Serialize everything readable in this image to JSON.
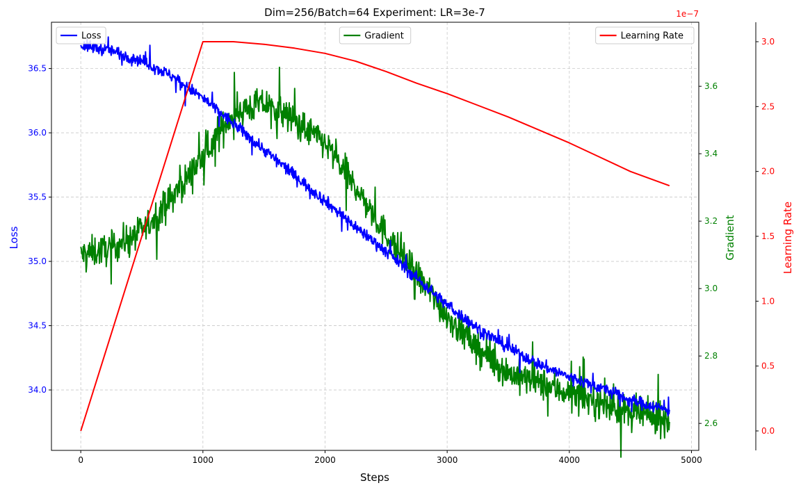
{
  "chart_data": {
    "type": "line",
    "title": "Dim=256/Batch=64 Experiment: LR=3e-7",
    "xlabel": "Steps",
    "xlim": [
      -240,
      5060
    ],
    "xticks": [
      0,
      1000,
      2000,
      3000,
      4000,
      5000
    ],
    "grid": true,
    "axes": {
      "loss": {
        "label": "Loss",
        "color": "#0000ff",
        "ylim": [
          33.53,
          36.86
        ],
        "ticks": [
          "34.0",
          "34.5",
          "35.0",
          "35.5",
          "36.0",
          "36.5"
        ]
      },
      "gradient": {
        "label": "Gradient",
        "color": "#008000",
        "ylim": [
          2.52,
          3.79
        ],
        "ticks": [
          "2.6",
          "2.8",
          "3.0",
          "3.2",
          "3.4",
          "3.6"
        ]
      },
      "learning_rate": {
        "label": "Learning Rate",
        "color": "#ff0000",
        "ylim": [
          -0.15,
          3.15
        ],
        "ticks": [
          "0.0",
          "0.5",
          "1.0",
          "1.5",
          "2.0",
          "2.5",
          "3.0"
        ],
        "offset_label": "1e−7"
      }
    },
    "series": [
      {
        "name": "Loss",
        "axis": "loss",
        "color": "#0000ff",
        "x": [
          0,
          250,
          500,
          750,
          1000,
          1250,
          1500,
          1750,
          2000,
          2250,
          2500,
          2750,
          3000,
          3250,
          3500,
          3750,
          4000,
          4250,
          4500,
          4820
        ],
        "y": [
          36.68,
          36.64,
          36.56,
          36.44,
          36.27,
          36.07,
          35.87,
          35.67,
          35.47,
          35.27,
          35.08,
          34.87,
          34.66,
          34.48,
          34.33,
          34.2,
          34.1,
          34.02,
          33.92,
          33.84
        ],
        "noise": 0.05
      },
      {
        "name": "Gradient",
        "axis": "gradient",
        "color": "#008000",
        "x": [
          0,
          250,
          500,
          750,
          1000,
          1250,
          1500,
          1750,
          2000,
          2250,
          2500,
          2750,
          3000,
          3250,
          3500,
          3750,
          4000,
          4250,
          4500,
          4820
        ],
        "y": [
          3.1,
          3.12,
          3.17,
          3.27,
          3.39,
          3.52,
          3.55,
          3.5,
          3.43,
          3.3,
          3.16,
          3.04,
          2.92,
          2.82,
          2.75,
          2.72,
          2.69,
          2.66,
          2.63,
          2.61
        ],
        "noise": 0.05
      },
      {
        "name": "Learning Rate",
        "axis": "learning_rate",
        "color": "#ff0000",
        "x": [
          0,
          1000,
          1250,
          1500,
          1750,
          2000,
          2250,
          2500,
          2750,
          3000,
          3250,
          3500,
          3750,
          4000,
          4250,
          4500,
          4820
        ],
        "y": [
          0.0,
          3.0,
          3.0,
          2.98,
          2.95,
          2.91,
          2.85,
          2.77,
          2.68,
          2.6,
          2.51,
          2.42,
          2.32,
          2.22,
          2.11,
          2.0,
          1.89
        ]
      }
    ],
    "legends": [
      {
        "series": "Loss",
        "placement": "upper left"
      },
      {
        "series": "Gradient",
        "placement": "upper center"
      },
      {
        "series": "Learning Rate",
        "placement": "upper right"
      }
    ]
  }
}
